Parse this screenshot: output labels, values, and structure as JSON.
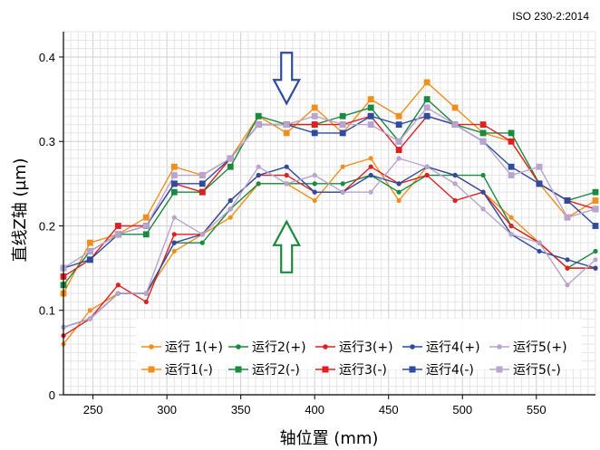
{
  "chart_data": {
    "type": "line",
    "standard_label": "ISO 230-2:2014",
    "xlabel": "轴位置 (mm)",
    "ylabel": "直线Z轴 (µm)",
    "xlim": [
      230,
      590
    ],
    "ylim": [
      0,
      0.43
    ],
    "x_ticks": [
      250,
      300,
      350,
      400,
      450,
      500,
      550
    ],
    "y_ticks": [
      0,
      0.1,
      0.2,
      0.3,
      0.4
    ],
    "x_tick_labels": [
      "250",
      "300",
      "350",
      "400",
      "450",
      "500",
      "550"
    ],
    "y_tick_labels": [
      "0",
      "0.1",
      "0.2",
      "0.3",
      "0.4"
    ],
    "grid": true,
    "legend_position": "bottom-right",
    "x": [
      230,
      248,
      267,
      286,
      305,
      324,
      343,
      362,
      381,
      400,
      419,
      438,
      457,
      476,
      495,
      514,
      533,
      552,
      571,
      590
    ],
    "series": [
      {
        "name": "运行 1(+)",
        "color": "#f28e1c",
        "marker": "circle",
        "values": [
          0.06,
          0.1,
          0.12,
          0.12,
          0.17,
          0.19,
          0.21,
          0.25,
          0.25,
          0.23,
          0.27,
          0.28,
          0.23,
          0.27,
          0.26,
          0.24,
          0.21,
          0.18,
          0.15,
          0.15
        ]
      },
      {
        "name": "运行2(+)",
        "color": "#1a8a3e",
        "marker": "circle",
        "values": [
          0.08,
          0.09,
          0.12,
          0.12,
          0.18,
          0.18,
          0.22,
          0.25,
          0.25,
          0.25,
          0.25,
          0.26,
          0.24,
          0.26,
          0.26,
          0.26,
          0.2,
          0.18,
          0.15,
          0.17
        ]
      },
      {
        "name": "运行3(+)",
        "color": "#e02020",
        "marker": "circle",
        "values": [
          0.07,
          0.09,
          0.13,
          0.11,
          0.19,
          0.19,
          0.23,
          0.26,
          0.26,
          0.24,
          0.24,
          0.27,
          0.25,
          0.26,
          0.23,
          0.24,
          0.2,
          0.18,
          0.15,
          0.15
        ]
      },
      {
        "name": "运行4(+)",
        "color": "#2e4b9e",
        "marker": "circle",
        "values": [
          0.08,
          0.09,
          0.12,
          0.12,
          0.18,
          0.19,
          0.23,
          0.26,
          0.27,
          0.24,
          0.24,
          0.26,
          0.25,
          0.27,
          0.26,
          0.24,
          0.19,
          0.17,
          0.16,
          0.15
        ]
      },
      {
        "name": "运行5(+)",
        "color": "#b9a4cf",
        "marker": "circle",
        "values": [
          0.08,
          0.09,
          0.12,
          0.12,
          0.21,
          0.19,
          0.22,
          0.27,
          0.25,
          0.26,
          0.24,
          0.24,
          0.28,
          0.27,
          0.25,
          0.22,
          0.19,
          0.18,
          0.13,
          0.16
        ]
      },
      {
        "name": "运行1(-)",
        "color": "#f28e1c",
        "marker": "square",
        "values": [
          0.12,
          0.18,
          0.19,
          0.21,
          0.27,
          0.26,
          0.28,
          0.33,
          0.31,
          0.34,
          0.31,
          0.35,
          0.33,
          0.37,
          0.34,
          0.31,
          0.3,
          0.25,
          0.21,
          0.23
        ]
      },
      {
        "name": "运行2(-)",
        "color": "#1a8a3e",
        "marker": "square",
        "values": [
          0.13,
          0.17,
          0.19,
          0.19,
          0.24,
          0.24,
          0.27,
          0.33,
          0.32,
          0.32,
          0.33,
          0.34,
          0.3,
          0.35,
          0.32,
          0.31,
          0.31,
          0.25,
          0.23,
          0.24
        ]
      },
      {
        "name": "运行3(-)",
        "color": "#e02020",
        "marker": "square",
        "values": [
          0.14,
          0.16,
          0.2,
          0.2,
          0.25,
          0.24,
          0.28,
          0.32,
          0.32,
          0.32,
          0.32,
          0.33,
          0.29,
          0.33,
          0.32,
          0.32,
          0.3,
          0.25,
          0.23,
          0.22
        ]
      },
      {
        "name": "运行4(-)",
        "color": "#2e4b9e",
        "marker": "square",
        "values": [
          0.15,
          0.16,
          0.19,
          0.2,
          0.25,
          0.25,
          0.28,
          0.32,
          0.32,
          0.31,
          0.31,
          0.33,
          0.32,
          0.33,
          0.32,
          0.3,
          0.27,
          0.25,
          0.23,
          0.2
        ]
      },
      {
        "name": "运行5(-)",
        "color": "#b9a4cf",
        "marker": "square",
        "values": [
          0.15,
          0.17,
          0.19,
          0.2,
          0.26,
          0.26,
          0.28,
          0.32,
          0.32,
          0.33,
          0.32,
          0.32,
          0.3,
          0.34,
          0.32,
          0.3,
          0.26,
          0.27,
          0.21,
          0.22
        ]
      }
    ],
    "annotations": [
      {
        "type": "arrow-down",
        "color": "#2e4b9e",
        "x": 381,
        "y": 0.345
      },
      {
        "type": "arrow-up",
        "color": "#1a8a3e",
        "x": 381,
        "y": 0.205
      }
    ]
  }
}
